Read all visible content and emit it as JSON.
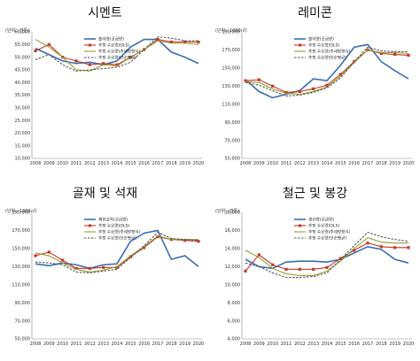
{
  "chart_data": [
    {
      "type": "line",
      "title": "시멘트",
      "unit_label": "(단위 : 천톤)",
      "x": [
        "2008",
        "2009",
        "2010",
        "2011",
        "2012",
        "2013",
        "2014",
        "2015",
        "2016",
        "2017",
        "2018",
        "2019",
        "2020"
      ],
      "ylim": [
        10000,
        60000
      ],
      "yticks": [
        "10,000",
        "15,000",
        "20,000",
        "25,000",
        "30,000",
        "35,000",
        "40,000",
        "45,000",
        "50,000",
        "55,000",
        "60,000"
      ],
      "ytick_values": [
        10000,
        15000,
        20000,
        25000,
        30000,
        35000,
        40000,
        45000,
        50000,
        55000,
        60000
      ],
      "grid": false,
      "legend": "top-center",
      "series": [
        {
          "name": "출하량(공급량)",
          "color": "#3b6db3",
          "style": "solid",
          "marker": "none",
          "values": [
            53500,
            51000,
            48500,
            47500,
            48000,
            47000,
            48500,
            54000,
            57000,
            57000,
            52000,
            50000,
            47500
          ]
        },
        {
          "name": "추정 수요량(OLS)",
          "color": "#c0392b",
          "style": "solid",
          "marker": "square",
          "values": [
            52500,
            55000,
            50000,
            48500,
            47000,
            47500,
            47000,
            50000,
            53000,
            57000,
            56000,
            56000,
            56000
          ]
        },
        {
          "name": "추정 수요량(추세방정식)",
          "color": "#9a9a2a",
          "style": "solid",
          "marker": "none",
          "values": [
            57000,
            54000,
            50000,
            45000,
            44500,
            47000,
            46500,
            50000,
            53000,
            56500,
            55500,
            55500,
            55000
          ]
        },
        {
          "name": "추정 수요량(단순평균)",
          "color": "#555555",
          "style": "dashed",
          "marker": "none",
          "values": [
            49000,
            51000,
            47000,
            44500,
            45000,
            45500,
            46000,
            48000,
            53000,
            58000,
            57500,
            56500,
            56500
          ]
        }
      ]
    },
    {
      "type": "line",
      "title": "레미콘",
      "unit_label": "(단위 : 1000㎥)",
      "x": [
        "2008",
        "2009",
        "2010",
        "2011",
        "2012",
        "2013",
        "2014",
        "2015",
        "2016",
        "2017",
        "2018",
        "2019",
        "2020"
      ],
      "ylim": [
        50000,
        190000
      ],
      "yticks": [
        "50,000",
        "70,000",
        "90,000",
        "110,000",
        "130,000",
        "150,000",
        "170,000",
        "190,000"
      ],
      "ytick_values": [
        50000,
        70000,
        90000,
        110000,
        130000,
        150000,
        170000,
        190000
      ],
      "grid": false,
      "legend": "top-center",
      "series": [
        {
          "name": "출하량(공급량)",
          "color": "#3b6db3",
          "style": "solid",
          "marker": "none",
          "values": [
            137000,
            124000,
            117000,
            121000,
            125000,
            138000,
            136000,
            153000,
            173000,
            176000,
            157000,
            147000,
            138000
          ]
        },
        {
          "name": "추정 수요량(OLS)",
          "color": "#c0392b",
          "style": "solid",
          "marker": "square",
          "values": [
            136000,
            137000,
            130000,
            123000,
            124000,
            127000,
            131000,
            143000,
            157000,
            170000,
            166000,
            165000,
            164000
          ]
        },
        {
          "name": "추정 수요량(추세방정식)",
          "color": "#9a9a2a",
          "style": "solid",
          "marker": "none",
          "values": [
            135000,
            134000,
            127000,
            122000,
            121000,
            124000,
            129000,
            141000,
            156000,
            170000,
            167000,
            167000,
            166000
          ]
        },
        {
          "name": "추정 수요량(단순평균)",
          "color": "#555555",
          "style": "dashed",
          "marker": "none",
          "values": [
            134000,
            131000,
            125000,
            119000,
            120000,
            123000,
            128000,
            139000,
            157000,
            173000,
            169000,
            168000,
            168000
          ]
        }
      ]
    },
    {
      "type": "line",
      "title": "골재 및 석재",
      "unit_label": "(단위 : 1000㎥)",
      "x": [
        "2008",
        "2009",
        "2010",
        "2011",
        "2012",
        "2013",
        "2014",
        "2015",
        "2016",
        "2017",
        "2018",
        "2019",
        "2020"
      ],
      "ylim": [
        50000,
        190000
      ],
      "yticks": [
        "50,000",
        "70,000",
        "90,000",
        "110,000",
        "130,000",
        "150,000",
        "170,000",
        "190,000"
      ],
      "ytick_values": [
        50000,
        70000,
        90000,
        110000,
        130000,
        150000,
        170000,
        190000
      ],
      "grid": false,
      "legend": "top-center",
      "series": [
        {
          "name": "채취실적(공급량)",
          "color": "#3b6db3",
          "style": "solid",
          "marker": "none",
          "values": [
            133000,
            131000,
            134000,
            132000,
            128000,
            132000,
            133000,
            158000,
            167000,
            170000,
            138000,
            142000,
            130000
          ]
        },
        {
          "name": "추정 수요량(OLS)",
          "color": "#c0392b",
          "style": "solid",
          "marker": "square",
          "values": [
            142000,
            146000,
            137000,
            128000,
            128000,
            129000,
            129000,
            141000,
            151000,
            163000,
            160000,
            159000,
            158000
          ]
        },
        {
          "name": "추정 수요량(추세방정식)",
          "color": "#9a9a2a",
          "style": "solid",
          "marker": "none",
          "values": [
            145000,
            142000,
            134000,
            127000,
            124000,
            126000,
            130000,
            142000,
            152000,
            164000,
            160000,
            160000,
            160000
          ]
        },
        {
          "name": "추정 수요량(단순평균)",
          "color": "#555555",
          "style": "dashed",
          "marker": "none",
          "values": [
            135000,
            134000,
            132000,
            124000,
            123000,
            125000,
            127000,
            140000,
            153000,
            168000,
            161000,
            160000,
            159000
          ]
        }
      ]
    },
    {
      "type": "line",
      "title": "철근 및 봉강",
      "unit_label": "(단위 : 천톤)",
      "x": [
        "2008",
        "2009",
        "2010",
        "2011",
        "2012",
        "2013",
        "2014",
        "2015",
        "2016",
        "2017",
        "2018",
        "2019",
        "2020"
      ],
      "ylim": [
        4000,
        18000
      ],
      "yticks": [
        "4,000",
        "6,000",
        "8,000",
        "10,000",
        "12,000",
        "14,000",
        "16,000",
        "18,000"
      ],
      "ytick_values": [
        4000,
        6000,
        8000,
        10000,
        12000,
        14000,
        16000,
        18000
      ],
      "grid": false,
      "legend": "top-center",
      "series": [
        {
          "name": "생산량(공급량)",
          "color": "#3b6db3",
          "style": "solid",
          "marker": "none",
          "values": [
            12800,
            12000,
            11800,
            12500,
            12600,
            12600,
            12500,
            12800,
            13500,
            14200,
            13900,
            12800,
            12400
          ]
        },
        {
          "name": "추정 수요량(OLS)",
          "color": "#c0392b",
          "style": "solid",
          "marker": "square",
          "values": [
            11500,
            13300,
            12200,
            11700,
            11700,
            11700,
            11900,
            12900,
            13800,
            14600,
            14200,
            14100,
            14100
          ]
        },
        {
          "name": "추정 수요량(추세방정식)",
          "color": "#9a9a2a",
          "style": "solid",
          "marker": "none",
          "values": [
            13800,
            13000,
            11800,
            11200,
            11000,
            11000,
            11500,
            12600,
            14000,
            15200,
            14700,
            14600,
            14600
          ]
        },
        {
          "name": "추정 수요량(단순평균)",
          "color": "#555555",
          "style": "dashed",
          "marker": "none",
          "values": [
            12400,
            12000,
            11300,
            10800,
            10800,
            10900,
            11300,
            12800,
            14300,
            15800,
            15300,
            15000,
            14800
          ]
        }
      ]
    }
  ]
}
